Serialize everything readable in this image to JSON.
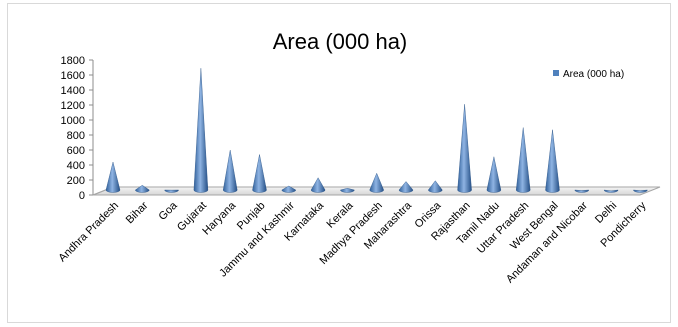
{
  "chart_data": {
    "type": "bar",
    "style": "3d-cone",
    "title": "Area (000 ha)",
    "xlabel": "",
    "ylabel": "",
    "ylim": [
      0,
      1800
    ],
    "yticks": [
      0,
      200,
      400,
      600,
      800,
      1000,
      1200,
      1400,
      1600,
      1800
    ],
    "grid": false,
    "legend_position": "top-right",
    "categories": [
      "Andhra Pradesh",
      "Bihar",
      "Goa",
      "Gujarat",
      "Haryana",
      "Punjab",
      "Jammu and Kashmir",
      "Karnataka",
      "Kerala",
      "Madhya Pradesh",
      "Maharashtra",
      "Orissa",
      "Rajasthan",
      "Tamil Nadu",
      "Uttar Pradesh",
      "West Bengal",
      "Andaman and Nicobar",
      "Delhi",
      "Pondicherry"
    ],
    "series": [
      {
        "name": "Area (000 ha)",
        "color": "#4f81bd",
        "values": [
          400,
          90,
          25,
          1650,
          560,
          500,
          80,
          190,
          50,
          250,
          140,
          150,
          1170,
          470,
          860,
          830,
          20,
          15,
          18
        ]
      }
    ]
  }
}
